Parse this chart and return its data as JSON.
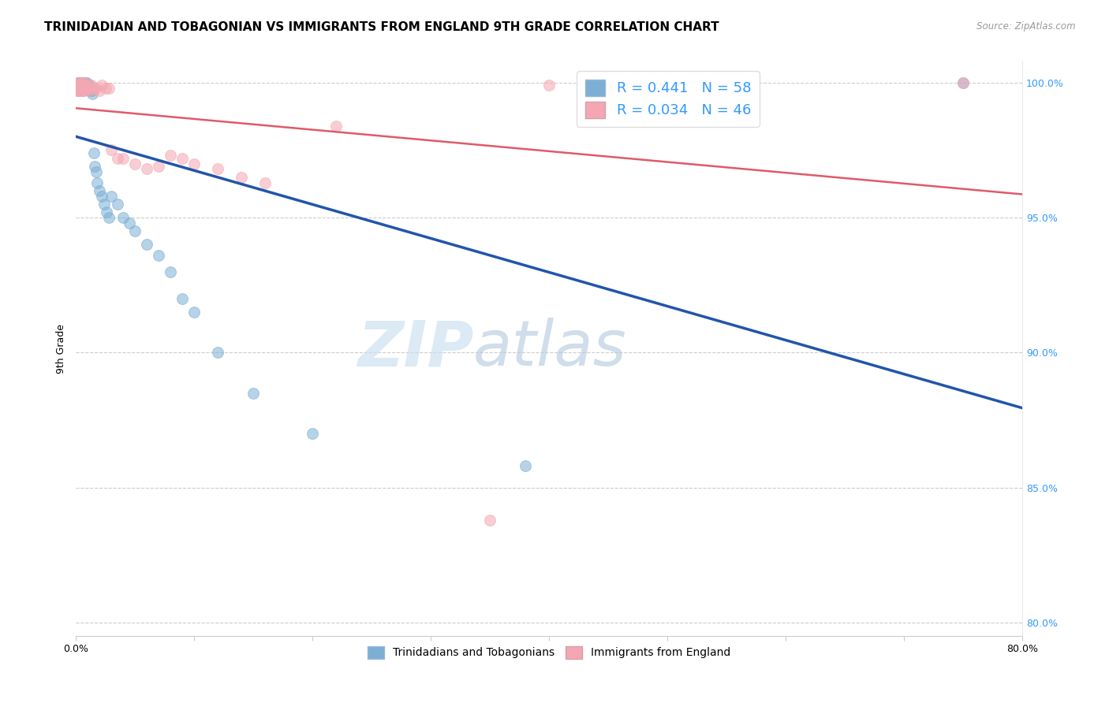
{
  "title": "TRINIDADIAN AND TOBAGONIAN VS IMMIGRANTS FROM ENGLAND 9TH GRADE CORRELATION CHART",
  "source": "Source: ZipAtlas.com",
  "ylabel": "9th Grade",
  "xlim": [
    0.0,
    0.8
  ],
  "ylim": [
    0.795,
    1.008
  ],
  "xticks": [
    0.0,
    0.1,
    0.2,
    0.3,
    0.4,
    0.5,
    0.6,
    0.7,
    0.8
  ],
  "xticklabels": [
    "0.0%",
    "",
    "",
    "",
    "",
    "",
    "",
    "",
    "80.0%"
  ],
  "yticks": [
    0.8,
    0.85,
    0.9,
    0.95,
    1.0
  ],
  "yticklabels": [
    "80.0%",
    "85.0%",
    "90.0%",
    "95.0%",
    "100.0%"
  ],
  "legend_blue_R": "R = 0.441",
  "legend_blue_N": "N = 58",
  "legend_pink_R": "R = 0.034",
  "legend_pink_N": "N = 46",
  "blue_color": "#7bafd4",
  "pink_color": "#f4a7b2",
  "blue_line_color": "#2255aa",
  "pink_line_color": "#e05a6a",
  "watermark_zip": "ZIP",
  "watermark_atlas": "atlas",
  "grid_color": "#cccccc",
  "background_color": "#ffffff",
  "right_axis_color": "#3399ff",
  "title_fontsize": 11,
  "axis_label_fontsize": 9,
  "tick_fontsize": 9,
  "legend_fontsize": 13,
  "blue_scatter_x": [
    0.001,
    0.001,
    0.002,
    0.002,
    0.002,
    0.003,
    0.003,
    0.003,
    0.004,
    0.004,
    0.004,
    0.005,
    0.005,
    0.005,
    0.005,
    0.006,
    0.006,
    0.006,
    0.006,
    0.007,
    0.007,
    0.007,
    0.008,
    0.008,
    0.008,
    0.009,
    0.009,
    0.01,
    0.01,
    0.011,
    0.011,
    0.012,
    0.013,
    0.014,
    0.015,
    0.016,
    0.017,
    0.018,
    0.02,
    0.022,
    0.024,
    0.026,
    0.028,
    0.03,
    0.035,
    0.04,
    0.045,
    0.05,
    0.06,
    0.07,
    0.08,
    0.09,
    0.1,
    0.12,
    0.15,
    0.2,
    0.38,
    0.75
  ],
  "blue_scatter_y": [
    0.997,
    0.998,
    0.998,
    0.999,
    1.0,
    0.998,
    1.0,
    1.0,
    0.998,
    1.0,
    1.0,
    0.998,
    1.0,
    1.0,
    1.0,
    0.997,
    0.998,
    1.0,
    1.0,
    0.998,
    0.999,
    1.0,
    0.998,
    0.999,
    1.0,
    0.998,
    1.0,
    0.998,
    0.999,
    0.998,
    0.999,
    0.997,
    0.997,
    0.996,
    0.974,
    0.969,
    0.967,
    0.963,
    0.96,
    0.958,
    0.955,
    0.952,
    0.95,
    0.958,
    0.955,
    0.95,
    0.948,
    0.945,
    0.94,
    0.936,
    0.93,
    0.92,
    0.915,
    0.9,
    0.885,
    0.87,
    0.858,
    1.0
  ],
  "pink_scatter_x": [
    0.001,
    0.001,
    0.002,
    0.002,
    0.003,
    0.003,
    0.004,
    0.004,
    0.005,
    0.005,
    0.005,
    0.006,
    0.006,
    0.007,
    0.007,
    0.008,
    0.008,
    0.009,
    0.01,
    0.011,
    0.012,
    0.013,
    0.015,
    0.017,
    0.02,
    0.022,
    0.025,
    0.028,
    0.03,
    0.035,
    0.04,
    0.05,
    0.06,
    0.07,
    0.08,
    0.09,
    0.1,
    0.12,
    0.14,
    0.16,
    0.22,
    0.35,
    0.4,
    0.45,
    0.48,
    0.75
  ],
  "pink_scatter_y": [
    0.998,
    1.0,
    0.997,
    0.999,
    0.998,
    1.0,
    0.997,
    0.999,
    0.998,
    0.999,
    1.0,
    0.998,
    1.0,
    0.997,
    0.999,
    0.998,
    1.0,
    0.999,
    0.998,
    0.997,
    0.998,
    0.999,
    0.998,
    0.998,
    0.997,
    0.999,
    0.998,
    0.998,
    0.975,
    0.972,
    0.972,
    0.97,
    0.968,
    0.969,
    0.973,
    0.972,
    0.97,
    0.968,
    0.965,
    0.963,
    0.984,
    0.838,
    0.999,
    0.998,
    0.998,
    1.0
  ]
}
